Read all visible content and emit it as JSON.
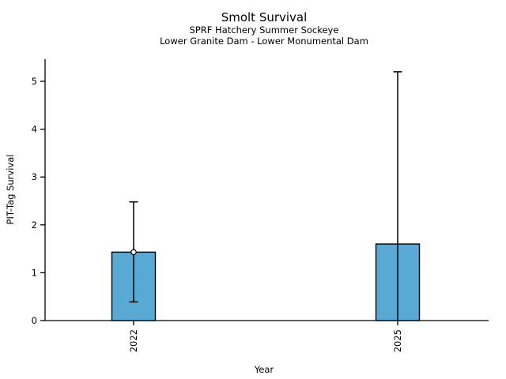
{
  "chart_data": {
    "type": "bar",
    "title": "Smolt Survival",
    "subtitle_lines": [
      "SPRF Hatchery Summer Sockeye",
      "Lower Granite Dam - Lower Monumental Dam"
    ],
    "xlabel": "Year",
    "ylabel": "PIT-Tag Survival",
    "categories": [
      "2022",
      "2025"
    ],
    "values": [
      1.43,
      1.6
    ],
    "error_low": [
      0.39,
      0
    ],
    "error_high": [
      2.48,
      5.2
    ],
    "error_low_cap": [
      true,
      false
    ],
    "point_markers": [
      1.43,
      null
    ],
    "yticks": [
      0,
      1,
      2,
      3,
      4,
      5
    ],
    "ylim": [
      0,
      5.46
    ],
    "grid": false,
    "legend": "none",
    "bar_color": "#58a9d4",
    "bar_edge_color": "#000000",
    "error_color": "#000000",
    "marker_fill": "#ffffff",
    "text_color": "#000000"
  }
}
